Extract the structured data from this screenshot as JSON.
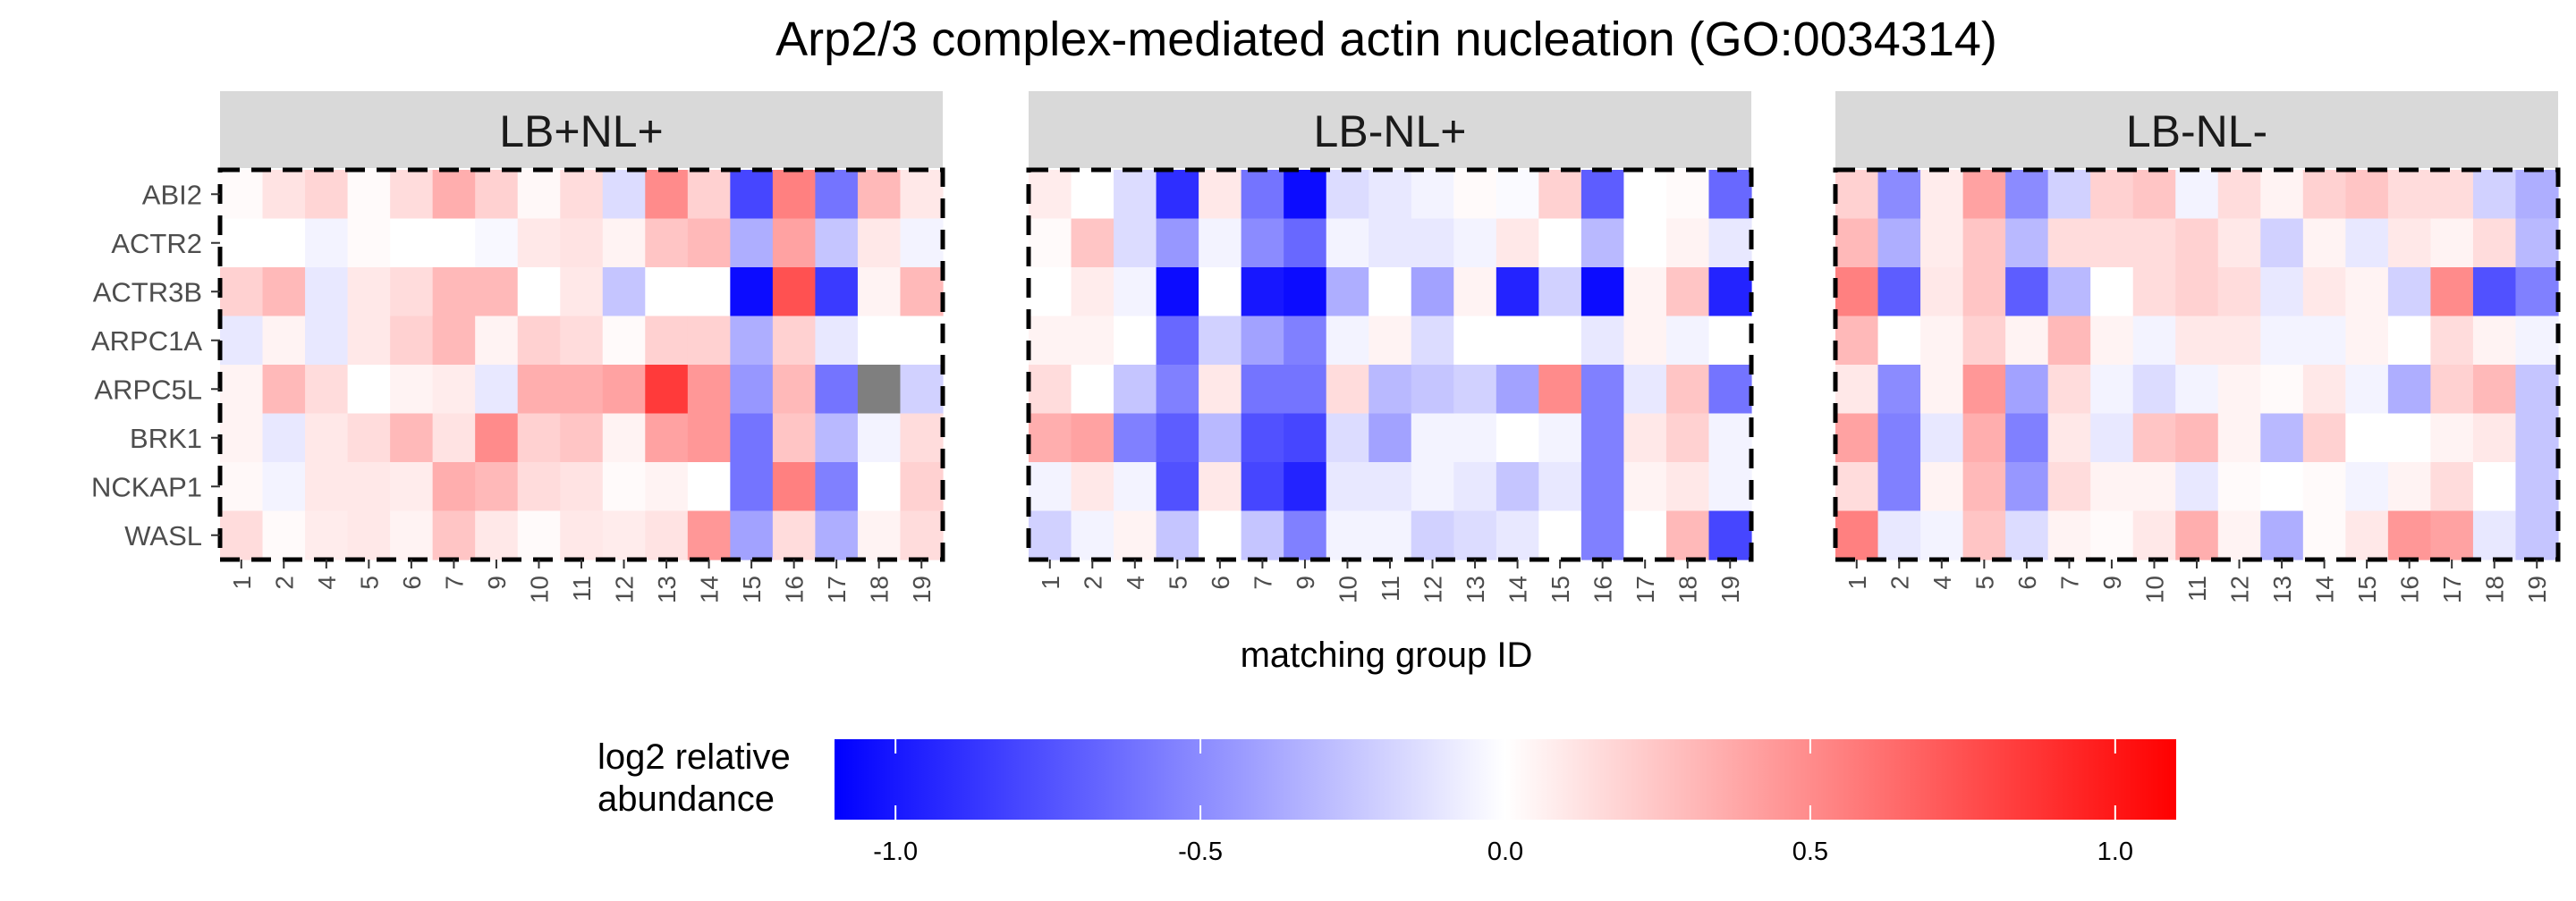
{
  "chart_data": {
    "type": "heatmap",
    "title": "Arp2/3 complex-mediated actin nucleation (GO:0034314)",
    "xlabel": "matching group ID",
    "legend_title": [
      "log2 relative",
      "abundance"
    ],
    "color_scale": {
      "low": "#0000FF",
      "mid": "#FFFFFF",
      "high": "#FF0000",
      "na": "#7F7F7F",
      "limits": [
        -1.1,
        1.1
      ]
    },
    "legend_ticks": [
      "-1.0",
      "-0.5",
      "0.0",
      "0.5",
      "1.0"
    ],
    "legend_tick_values": [
      -1.0,
      -0.5,
      0.0,
      0.5,
      1.0
    ],
    "rows": [
      "ABI2",
      "ACTR2",
      "ACTR3B",
      "ARPC1A",
      "ARPC5L",
      "BRK1",
      "NCKAP1",
      "WASL"
    ],
    "columns": [
      "1",
      "2",
      "4",
      "5",
      "6",
      "7",
      "9",
      "10",
      "11",
      "12",
      "13",
      "14",
      "15",
      "16",
      "17",
      "18",
      "19"
    ],
    "panels": [
      {
        "label": "LB+NL+",
        "values": [
          [
            0.02,
            0.12,
            0.18,
            0.02,
            0.15,
            0.35,
            0.2,
            0.03,
            0.15,
            -0.15,
            0.5,
            0.2,
            -0.8,
            0.55,
            -0.6,
            0.3,
            0.1
          ],
          [
            0.0,
            0.0,
            -0.05,
            0.02,
            0.0,
            0.0,
            -0.03,
            0.1,
            0.12,
            0.05,
            0.25,
            0.3,
            -0.35,
            0.4,
            -0.25,
            0.1,
            -0.05
          ],
          [
            0.2,
            0.3,
            -0.1,
            0.1,
            0.15,
            0.3,
            0.3,
            0.0,
            0.1,
            -0.25,
            0.0,
            0.0,
            -1.05,
            0.75,
            -0.85,
            0.05,
            0.3
          ],
          [
            -0.1,
            0.05,
            -0.1,
            0.1,
            0.2,
            0.3,
            0.05,
            0.2,
            0.15,
            0.02,
            0.2,
            0.2,
            -0.35,
            0.2,
            -0.1,
            0.0,
            0.0
          ],
          [
            0.05,
            0.3,
            0.15,
            0.0,
            0.05,
            0.08,
            -0.1,
            0.35,
            0.35,
            0.4,
            0.85,
            0.45,
            -0.45,
            0.3,
            -0.6,
            null,
            -0.2
          ],
          [
            0.05,
            -0.1,
            0.1,
            0.15,
            0.3,
            0.12,
            0.5,
            0.2,
            0.25,
            0.05,
            0.4,
            0.45,
            -0.6,
            0.25,
            -0.3,
            -0.05,
            0.15
          ],
          [
            0.03,
            -0.05,
            0.1,
            0.1,
            0.08,
            0.35,
            0.3,
            0.15,
            0.12,
            0.02,
            0.05,
            0.0,
            -0.6,
            0.55,
            -0.55,
            0.0,
            0.2
          ],
          [
            0.15,
            0.02,
            0.08,
            0.1,
            0.05,
            0.25,
            0.1,
            0.02,
            0.1,
            0.08,
            0.12,
            0.45,
            -0.4,
            0.15,
            -0.35,
            0.05,
            0.15
          ]
        ]
      },
      {
        "label": "LB-NL+",
        "values": [
          [
            0.08,
            0.0,
            -0.15,
            -0.9,
            0.1,
            -0.6,
            -1.05,
            -0.15,
            -0.1,
            -0.05,
            0.02,
            -0.02,
            0.2,
            -0.7,
            0.0,
            0.02,
            -0.65
          ],
          [
            0.02,
            0.25,
            -0.15,
            -0.45,
            -0.05,
            -0.5,
            -0.65,
            -0.05,
            -0.1,
            -0.1,
            -0.05,
            0.1,
            0.0,
            -0.3,
            0.0,
            0.05,
            -0.1
          ],
          [
            0.0,
            0.08,
            -0.05,
            -1.05,
            0.0,
            -1.0,
            -1.05,
            -0.35,
            0.0,
            -0.4,
            0.05,
            -0.95,
            -0.2,
            -1.05,
            0.05,
            0.25,
            -0.95
          ],
          [
            0.05,
            0.05,
            0.0,
            -0.65,
            -0.2,
            -0.4,
            -0.55,
            -0.05,
            0.05,
            -0.15,
            0.0,
            0.0,
            0.0,
            -0.1,
            0.05,
            -0.05,
            0.0
          ],
          [
            0.15,
            0.0,
            -0.25,
            -0.55,
            0.1,
            -0.6,
            -0.6,
            0.15,
            -0.3,
            -0.25,
            -0.2,
            -0.4,
            0.5,
            -0.55,
            -0.1,
            0.25,
            -0.6
          ],
          [
            0.35,
            0.4,
            -0.55,
            -0.7,
            -0.3,
            -0.75,
            -0.8,
            -0.15,
            -0.4,
            -0.05,
            -0.05,
            0.0,
            -0.05,
            -0.55,
            0.1,
            0.2,
            -0.05
          ],
          [
            -0.05,
            0.1,
            -0.05,
            -0.75,
            0.1,
            -0.8,
            -0.95,
            -0.1,
            -0.1,
            -0.05,
            -0.1,
            -0.25,
            -0.1,
            -0.55,
            0.05,
            0.1,
            -0.05
          ],
          [
            -0.2,
            -0.05,
            0.05,
            -0.25,
            0.0,
            -0.25,
            -0.55,
            -0.05,
            -0.05,
            -0.2,
            -0.15,
            -0.1,
            0.0,
            -0.55,
            0.0,
            0.3,
            -0.8
          ]
        ]
      },
      {
        "label": "LB-NL-",
        "values": [
          [
            0.2,
            -0.5,
            0.08,
            0.4,
            -0.5,
            -0.2,
            0.2,
            0.25,
            -0.05,
            0.15,
            0.05,
            0.2,
            0.25,
            0.15,
            0.15,
            -0.2,
            -0.35
          ],
          [
            0.3,
            -0.35,
            0.08,
            0.25,
            -0.3,
            0.15,
            0.15,
            0.15,
            0.2,
            0.1,
            -0.2,
            0.05,
            -0.1,
            0.1,
            0.05,
            0.15,
            -0.3
          ],
          [
            0.55,
            -0.7,
            0.1,
            0.25,
            -0.7,
            -0.3,
            0.0,
            0.15,
            0.2,
            0.15,
            -0.1,
            0.1,
            0.05,
            -0.2,
            0.5,
            -0.75,
            -0.55
          ],
          [
            0.3,
            0.0,
            0.05,
            0.2,
            0.05,
            0.3,
            0.05,
            -0.05,
            0.1,
            0.1,
            -0.05,
            -0.05,
            0.05,
            0.0,
            0.15,
            0.05,
            -0.05
          ],
          [
            0.1,
            -0.5,
            0.05,
            0.45,
            -0.4,
            0.15,
            -0.05,
            -0.15,
            -0.05,
            0.05,
            0.02,
            0.1,
            -0.05,
            -0.35,
            0.2,
            0.3,
            -0.25
          ],
          [
            0.4,
            -0.55,
            -0.1,
            0.35,
            -0.55,
            0.1,
            -0.1,
            0.25,
            0.3,
            0.05,
            -0.3,
            0.2,
            0.0,
            0.0,
            0.05,
            0.1,
            -0.25
          ],
          [
            0.15,
            -0.55,
            0.05,
            0.3,
            -0.45,
            0.15,
            0.05,
            0.05,
            -0.1,
            0.02,
            0.0,
            0.02,
            -0.05,
            0.05,
            0.15,
            0.0,
            -0.25
          ],
          [
            0.55,
            -0.1,
            -0.05,
            0.25,
            -0.15,
            0.05,
            0.02,
            0.1,
            0.35,
            0.05,
            -0.35,
            0.02,
            0.1,
            0.45,
            0.4,
            -0.1,
            -0.25
          ]
        ]
      }
    ]
  }
}
